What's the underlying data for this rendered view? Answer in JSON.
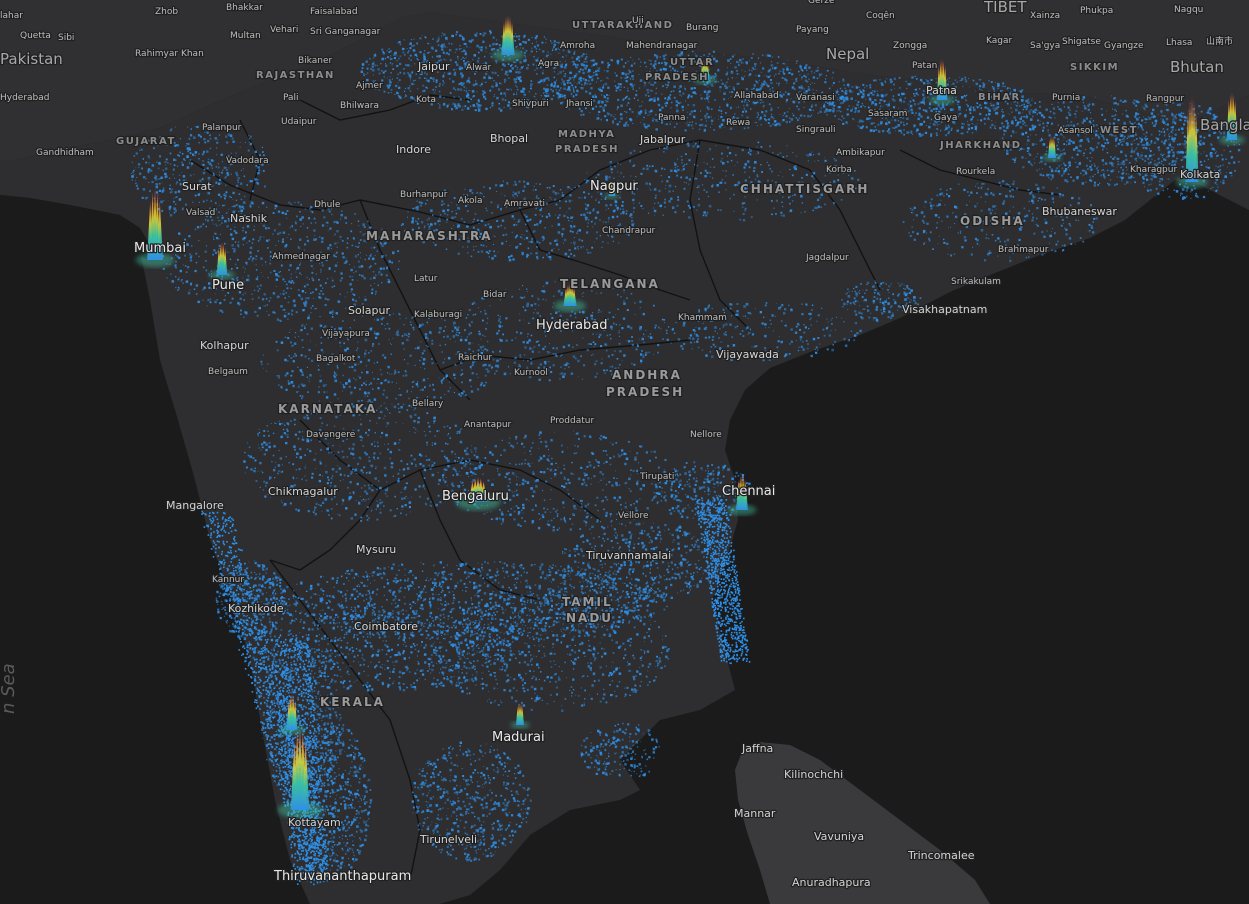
{
  "map": {
    "basemap_colors": {
      "water": "#1b1b1c",
      "land": "#2e2e30",
      "border": "#0f0f10",
      "density": "#2f8fe6"
    },
    "peak_colors": [
      "#2f8fe6",
      "#3cc3a0",
      "#d6d23a",
      "#e7962a",
      "#d23a5a"
    ],
    "countries": [
      {
        "id": "pakistan",
        "label": "Pakistan"
      },
      {
        "id": "nepal",
        "label": "Nepal"
      },
      {
        "id": "bhutan",
        "label": "Bhutan"
      },
      {
        "id": "bangla",
        "label": "Bangla"
      },
      {
        "id": "tibet",
        "label": "TIBET"
      }
    ],
    "seas": [
      {
        "id": "arabian-sea",
        "label": "n Sea"
      }
    ],
    "states": [
      {
        "id": "rajasthan",
        "label": "RAJASTHAN"
      },
      {
        "id": "gujarat",
        "label": "GUJARAT"
      },
      {
        "id": "madhya-1",
        "label": "MADHYA"
      },
      {
        "id": "madhya-2",
        "label": "PRADESH"
      },
      {
        "id": "uttar-1",
        "label": "UTTAR"
      },
      {
        "id": "uttar-2",
        "label": "PRADESH"
      },
      {
        "id": "uttarakhand",
        "label": "UTTARAKHAND"
      },
      {
        "id": "bihar",
        "label": "BIHAR"
      },
      {
        "id": "jharkhand",
        "label": "JHARKHAND"
      },
      {
        "id": "chhattisgarh",
        "label": "CHHATTISGARH"
      },
      {
        "id": "maharashtra",
        "label": "MAHARASHTRA"
      },
      {
        "id": "telangana",
        "label": "TELANGANA"
      },
      {
        "id": "odisha",
        "label": "ODISHA"
      },
      {
        "id": "andhra-1",
        "label": "ANDHRA"
      },
      {
        "id": "andhra-2",
        "label": "PRADESH"
      },
      {
        "id": "karnataka",
        "label": "KARNATAKA"
      },
      {
        "id": "tamil-1",
        "label": "TAMIL"
      },
      {
        "id": "tamil-2",
        "label": "NADU"
      },
      {
        "id": "kerala",
        "label": "KERALA"
      },
      {
        "id": "sikkim",
        "label": "SIKKIM"
      },
      {
        "id": "west-bengal",
        "label": "WEST"
      }
    ],
    "cities": [
      {
        "id": "zhob",
        "label": "Zhob"
      },
      {
        "id": "bhakkar",
        "label": "Bhakkar"
      },
      {
        "id": "faisalabad",
        "label": "Faisalabad"
      },
      {
        "id": "mahar",
        "label": "lahar"
      },
      {
        "id": "quetta",
        "label": "Quetta"
      },
      {
        "id": "sibi",
        "label": "Sibi"
      },
      {
        "id": "multan",
        "label": "Multan"
      },
      {
        "id": "vehari",
        "label": "Vehari"
      },
      {
        "id": "sri-ganganagar",
        "label": "Sri Ganganagar"
      },
      {
        "id": "rahimyar-khan",
        "label": "Rahimyar Khan"
      },
      {
        "id": "hyderabad-pk",
        "label": "Hyderabad"
      },
      {
        "id": "bikaner",
        "label": "Bikaner"
      },
      {
        "id": "jaipur",
        "label": "Jaipur"
      },
      {
        "id": "alwar",
        "label": "Alwar"
      },
      {
        "id": "ajmer",
        "label": "Ajmer"
      },
      {
        "id": "pali",
        "label": "Pali"
      },
      {
        "id": "bhilwara",
        "label": "Bhilwara"
      },
      {
        "id": "kota",
        "label": "Kota"
      },
      {
        "id": "shivpuri",
        "label": "Shivpuri"
      },
      {
        "id": "jhansi",
        "label": "Jhansi"
      },
      {
        "id": "udaipur",
        "label": "Udaipur"
      },
      {
        "id": "palanpur",
        "label": "Palanpur"
      },
      {
        "id": "gandhidham",
        "label": "Gandhidham"
      },
      {
        "id": "vadodara",
        "label": "Vadodara"
      },
      {
        "id": "surat",
        "label": "Surat"
      },
      {
        "id": "valsad",
        "label": "Valsad"
      },
      {
        "id": "nashik",
        "label": "Nashik"
      },
      {
        "id": "mumbai",
        "label": "Mumbai"
      },
      {
        "id": "pune",
        "label": "Pune"
      },
      {
        "id": "ahmednagar",
        "label": "Ahmednagar"
      },
      {
        "id": "dhule",
        "label": "Dhule"
      },
      {
        "id": "indore",
        "label": "Indore"
      },
      {
        "id": "bhopal",
        "label": "Bhopal"
      },
      {
        "id": "jabalpur",
        "label": "Jabalpur"
      },
      {
        "id": "panna",
        "label": "Panna"
      },
      {
        "id": "burhanpur",
        "label": "Burhanpur"
      },
      {
        "id": "akola",
        "label": "Akola"
      },
      {
        "id": "amravati",
        "label": "Amravati"
      },
      {
        "id": "nagpur",
        "label": "Nagpur"
      },
      {
        "id": "chandrapur",
        "label": "Chandrapur"
      },
      {
        "id": "latur",
        "label": "Latur"
      },
      {
        "id": "bidar",
        "label": "Bidar"
      },
      {
        "id": "solapur",
        "label": "Solapur"
      },
      {
        "id": "kalaburagi",
        "label": "Kalaburagi"
      },
      {
        "id": "vijayapura",
        "label": "Vijayapura"
      },
      {
        "id": "bagalkot",
        "label": "Bagalkot"
      },
      {
        "id": "kolhapur",
        "label": "Kolhapur"
      },
      {
        "id": "belgaum",
        "label": "Belgaum"
      },
      {
        "id": "raichur",
        "label": "Raichur"
      },
      {
        "id": "kurnool",
        "label": "Kurnool"
      },
      {
        "id": "hyderabad",
        "label": "Hyderabad"
      },
      {
        "id": "khammam",
        "label": "Khammam"
      },
      {
        "id": "vijayawada",
        "label": "Vijayawada"
      },
      {
        "id": "visakhapatnam",
        "label": "Visakhapatnam"
      },
      {
        "id": "srikakulam",
        "label": "Srikakulam"
      },
      {
        "id": "jagdalpur",
        "label": "Jagdalpur"
      },
      {
        "id": "brahmapur",
        "label": "Brahmapur"
      },
      {
        "id": "bhubaneswar",
        "label": "Bhubaneswar"
      },
      {
        "id": "rourkela",
        "label": "Rourkela"
      },
      {
        "id": "ambikapur",
        "label": "Ambikapur"
      },
      {
        "id": "korba",
        "label": "Korba"
      },
      {
        "id": "singrauli",
        "label": "Singrauli"
      },
      {
        "id": "rewa",
        "label": "Rewa"
      },
      {
        "id": "allahabad",
        "label": "Allahabad"
      },
      {
        "id": "varanasi",
        "label": "Varanasi"
      },
      {
        "id": "sasaram",
        "label": "Sasaram"
      },
      {
        "id": "gaya",
        "label": "Gaya"
      },
      {
        "id": "patna",
        "label": "Patna"
      },
      {
        "id": "purnia",
        "label": "Purnia"
      },
      {
        "id": "asansol",
        "label": "Asansol"
      },
      {
        "id": "kolkata",
        "label": "Kolkata"
      },
      {
        "id": "kharagpur",
        "label": "Kharagpur"
      },
      {
        "id": "rangpur",
        "label": "Rangpur"
      },
      {
        "id": "patan",
        "label": "Patan"
      },
      {
        "id": "zongga",
        "label": "Zongga"
      },
      {
        "id": "coqen",
        "label": "Coqên"
      },
      {
        "id": "gerze",
        "label": "Gêrzê"
      },
      {
        "id": "burang",
        "label": "Burang"
      },
      {
        "id": "payang",
        "label": "Payang"
      },
      {
        "id": "xainza",
        "label": "Xainza"
      },
      {
        "id": "phukpa",
        "label": "Phukpa"
      },
      {
        "id": "nagqu",
        "label": "Nagqu"
      },
      {
        "id": "kagar",
        "label": "Kagar"
      },
      {
        "id": "saigya",
        "label": "Sa'gya"
      },
      {
        "id": "shigatse",
        "label": "Shigatse"
      },
      {
        "id": "gyangze",
        "label": "Gyangze"
      },
      {
        "id": "lhasa",
        "label": "Lhasa"
      },
      {
        "id": "shannan",
        "label": "山南市"
      },
      {
        "id": "mahendranagar",
        "label": "Mahendranagar"
      },
      {
        "id": "amroha",
        "label": "Amroha"
      },
      {
        "id": "agra",
        "label": "Agra"
      },
      {
        "id": "uji",
        "label": "Uji"
      },
      {
        "id": "bellary",
        "label": "Bellary"
      },
      {
        "id": "anantapur",
        "label": "Anantapur"
      },
      {
        "id": "proddatur",
        "label": "Proddatur"
      },
      {
        "id": "nellore",
        "label": "Nellore"
      },
      {
        "id": "davangere",
        "label": "Davangere"
      },
      {
        "id": "chikmagalur",
        "label": "Chikmagalur"
      },
      {
        "id": "mangalore",
        "label": "Mangalore"
      },
      {
        "id": "bengaluru",
        "label": "Bengaluru"
      },
      {
        "id": "tirupati",
        "label": "Tirupati"
      },
      {
        "id": "chennai",
        "label": "Chennai"
      },
      {
        "id": "vellore",
        "label": "Vellore"
      },
      {
        "id": "tiruvannamalai",
        "label": "Tiruvannamalai"
      },
      {
        "id": "mysuru",
        "label": "Mysuru"
      },
      {
        "id": "kannur",
        "label": "Kannur"
      },
      {
        "id": "kozhikode",
        "label": "Kozhikode"
      },
      {
        "id": "coimbatore",
        "label": "Coimbatore"
      },
      {
        "id": "madurai",
        "label": "Madurai"
      },
      {
        "id": "kottayam",
        "label": "Kottayam"
      },
      {
        "id": "tirunelveli",
        "label": "Tirunelveli"
      },
      {
        "id": "thiruvananthapuram",
        "label": "Thiruvananthapuram"
      },
      {
        "id": "jaffna",
        "label": "Jaffna"
      },
      {
        "id": "kilinochchi",
        "label": "Kilinochchi"
      },
      {
        "id": "mannar",
        "label": "Mannar"
      },
      {
        "id": "vavuniya",
        "label": "Vavuniya"
      },
      {
        "id": "trincomalee",
        "label": "Trincomalee"
      },
      {
        "id": "anuradhapura",
        "label": "Anuradhapura"
      }
    ],
    "density_peaks": [
      {
        "id": "delhi",
        "level": 1.0
      },
      {
        "id": "mumbai",
        "level": 0.95
      },
      {
        "id": "kolkata",
        "level": 0.9
      },
      {
        "id": "patna",
        "level": 0.75
      },
      {
        "id": "dhaka-edge",
        "level": 0.8
      },
      {
        "id": "lucknow",
        "level": 0.6
      },
      {
        "id": "pune",
        "level": 0.6
      },
      {
        "id": "bengaluru",
        "level": 0.55
      },
      {
        "id": "chennai",
        "level": 0.6
      },
      {
        "id": "hyderabad",
        "level": 0.5
      },
      {
        "id": "thiruvananthapuram",
        "level": 0.55
      },
      {
        "id": "kochi",
        "level": 0.6
      },
      {
        "id": "madurai",
        "level": 0.45
      },
      {
        "id": "nagpur",
        "level": 0.35
      },
      {
        "id": "asansol",
        "level": 0.45
      }
    ]
  }
}
